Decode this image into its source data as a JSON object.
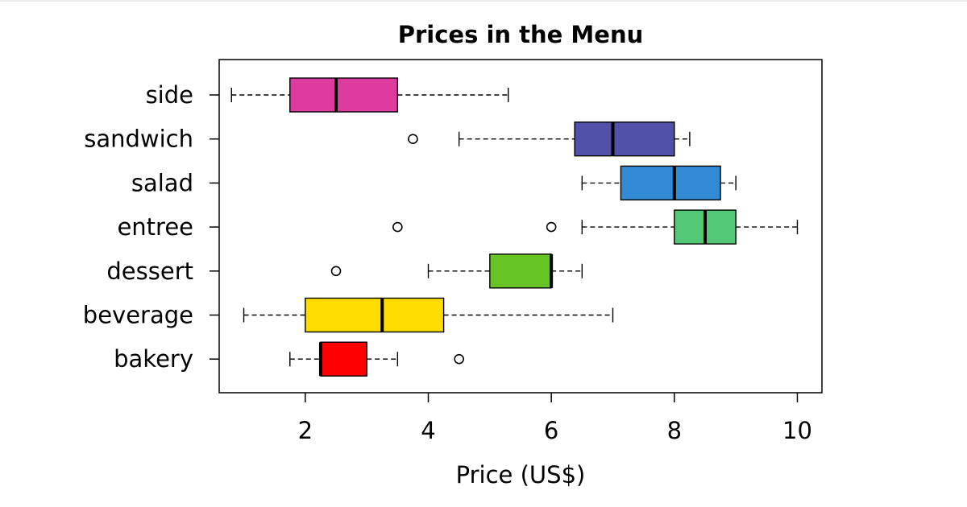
{
  "chart_data": {
    "type": "boxplot",
    "orientation": "horizontal",
    "title": "Prices in the Menu",
    "xlabel": "Price (US$)",
    "ylabel": "",
    "xlim": [
      0.6,
      10.4
    ],
    "x_ticks": [
      2,
      4,
      6,
      8,
      10
    ],
    "grid": false,
    "legend": "none",
    "categories": [
      "bakery",
      "beverage",
      "dessert",
      "entree",
      "salad",
      "sandwich",
      "side"
    ],
    "boxes": [
      {
        "category": "bakery",
        "whisker_low": 1.75,
        "q1": 2.25,
        "median": 2.25,
        "q3": 3.0,
        "whisker_high": 3.5,
        "outliers": [
          4.5
        ],
        "color": "#ff0000"
      },
      {
        "category": "beverage",
        "whisker_low": 1.0,
        "q1": 2.0,
        "median": 3.25,
        "q3": 4.25,
        "whisker_high": 7.0,
        "outliers": [],
        "color": "#ffdd00"
      },
      {
        "category": "dessert",
        "whisker_low": 4.0,
        "q1": 5.0,
        "median": 6.0,
        "q3": 6.0,
        "whisker_high": 6.5,
        "outliers": [
          2.5
        ],
        "color": "#66c522"
      },
      {
        "category": "entree",
        "whisker_low": 6.5,
        "q1": 8.0,
        "median": 8.5,
        "q3": 9.0,
        "whisker_high": 10.0,
        "outliers": [
          3.5,
          6.0
        ],
        "color": "#52c776"
      },
      {
        "category": "salad",
        "whisker_low": 6.5,
        "q1": 7.13,
        "median": 8.0,
        "q3": 8.75,
        "whisker_high": 9.0,
        "outliers": [],
        "color": "#318ad3"
      },
      {
        "category": "sandwich",
        "whisker_low": 4.5,
        "q1": 6.38,
        "median": 7.0,
        "q3": 8.0,
        "whisker_high": 8.25,
        "outliers": [
          3.75
        ],
        "color": "#5151a9"
      },
      {
        "category": "side",
        "whisker_low": 0.8,
        "q1": 1.75,
        "median": 2.5,
        "q3": 3.5,
        "whisker_high": 5.3,
        "outliers": [],
        "color": "#dd3b9e"
      }
    ]
  }
}
